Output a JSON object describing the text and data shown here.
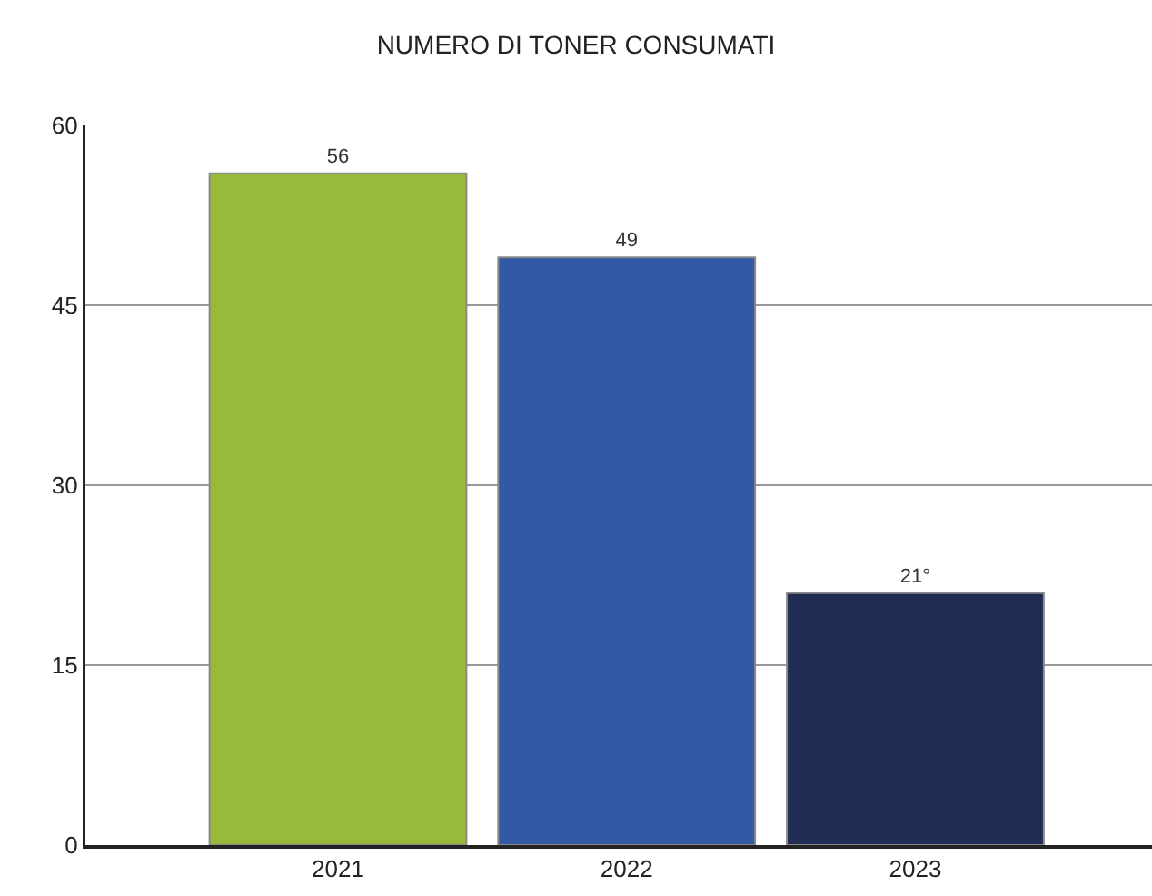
{
  "chart_data": {
    "type": "bar",
    "title": "NUMERO DI TONER CONSUMATI",
    "categories": [
      "2021",
      "2022",
      "2023"
    ],
    "values": [
      56,
      49,
      21
    ],
    "colors": [
      "#99b93a",
      "#3358a5",
      "#222d55"
    ],
    "value_labels": [
      "56",
      "49",
      "21°"
    ],
    "ylim": [
      0,
      60
    ],
    "yticks": [
      0,
      15,
      30,
      45,
      60
    ],
    "grid": "y"
  }
}
